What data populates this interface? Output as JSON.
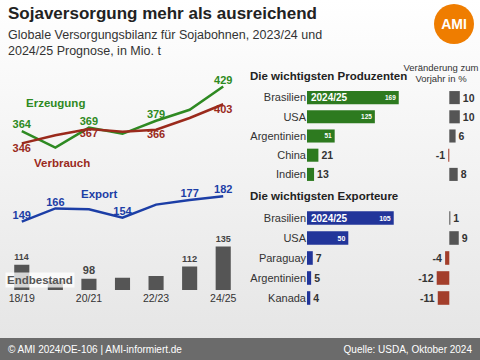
{
  "title": "Sojaversorgung mehr als ausreichend",
  "subtitle": [
    "Globale Versorgungsbilanz für Sojabohnen, 2023/24 und",
    "2024/25 Prognose, in Mio. t"
  ],
  "logo": "AMI",
  "footer": [
    "© AMI 2024/OE-106 | AMI-informiert.de",
    "Quelle: USDA, Oktober 2024"
  ],
  "chart_data": [
    {
      "type": "line",
      "categories": [
        "18/19",
        null,
        "20/21",
        null,
        "22/23",
        null,
        "24/25"
      ],
      "tick_labels": false,
      "data_labels": true,
      "ylim": [
        300,
        450
      ],
      "series": [
        {
          "name": "Erzeugung",
          "color": "#2e8a22",
          "values": [
            364,
            340,
            369,
            360,
            379,
            395,
            429
          ],
          "value_labels": [
            "364",
            null,
            "369",
            null,
            "379",
            null,
            "429"
          ]
        },
        {
          "name": "Verbrauch",
          "color": "#9a2a1c",
          "values": [
            346,
            358,
            367,
            363,
            366,
            383,
            403
          ],
          "value_labels": [
            "346",
            null,
            "367",
            null,
            "366",
            null,
            "403"
          ]
        }
      ]
    },
    {
      "type": "bar",
      "categories": [
        "18/19",
        null,
        "20/21",
        null,
        "22/23",
        null,
        "24/25"
      ],
      "tick_labels": "x",
      "data_labels": true,
      "ylim": [
        85,
        200
      ],
      "y2lim": [
        60,
        190
      ],
      "series": [
        {
          "name": "Endbestand",
          "type": "bar",
          "color": "#555555",
          "values": [
            114,
            95,
            98,
            99,
            101,
            112,
            135
          ],
          "value_labels": [
            "114",
            null,
            "98",
            null,
            null,
            "112",
            "135"
          ]
        },
        {
          "name": "Export",
          "type": "line",
          "axis": "y2",
          "color": "#1c3ea6",
          "values": [
            149,
            166,
            165,
            154,
            171,
            177,
            182
          ],
          "value_labels": [
            "149",
            "166",
            null,
            "154",
            null,
            "177",
            "182"
          ]
        }
      ]
    },
    {
      "type": "bar",
      "orientation": "horizontal",
      "title": "Die wichtigsten Produzenten",
      "categories": [
        "Brasilien",
        "USA",
        "Argentinien",
        "China",
        "Indien"
      ],
      "values": [
        169,
        125,
        51,
        21,
        13
      ],
      "color": "#2d7a1f",
      "xlim": [
        0,
        175
      ],
      "tick_labels": "y",
      "data_labels": true,
      "annotations": [
        {
          "category": "Brasilien",
          "text": "2024/25"
        }
      ]
    },
    {
      "type": "bar",
      "orientation": "horizontal",
      "title": "Veränderung zum Vorjahr in %",
      "categories": [
        "Brasilien",
        "USA",
        "Argentinien",
        "China",
        "Indien"
      ],
      "values": [
        10,
        10,
        6,
        -1,
        8
      ],
      "colors": [
        "#555555",
        "#555555",
        "#555555",
        "#a33e2b",
        "#555555"
      ],
      "xlim": [
        -26,
        14
      ],
      "tick_labels": false,
      "data_labels": true
    },
    {
      "type": "bar",
      "orientation": "horizontal",
      "title": "Die wichtigsten Exporteure",
      "categories": [
        "Brasilien",
        "USA",
        "Paraguay",
        "Argentinien",
        "Kanada"
      ],
      "values": [
        105,
        50,
        7,
        5,
        4
      ],
      "color": "#22359a",
      "xlim": [
        0,
        115
      ],
      "tick_labels": "y",
      "data_labels": true,
      "annotations": [
        {
          "category": "Brasilien",
          "text": "2024/25"
        }
      ]
    },
    {
      "type": "bar",
      "orientation": "horizontal",
      "categories": [
        "Brasilien",
        "USA",
        "Paraguay",
        "Argentinien",
        "Kanada"
      ],
      "values": [
        1,
        9,
        -4,
        -12,
        -11
      ],
      "colors": [
        "#555555",
        "#555555",
        "#a33e2b",
        "#a33e2b",
        "#a33e2b"
      ],
      "xlim": [
        -26,
        14
      ],
      "tick_labels": false,
      "data_labels": true
    }
  ]
}
